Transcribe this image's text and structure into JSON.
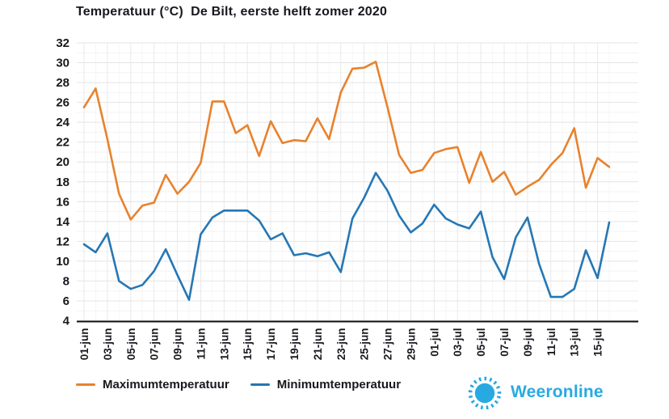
{
  "header": {
    "title": "Temperatuur (°C)  De Bilt, eerste helft zomer 2020"
  },
  "chart_data": {
    "type": "line",
    "title": "Temperatuur (°C)  De Bilt, eerste helft zomer 2020",
    "x_dates": [
      "01-jun",
      "02-jun",
      "03-jun",
      "04-jun",
      "05-jun",
      "06-jun",
      "07-jun",
      "08-jun",
      "09-jun",
      "10-jun",
      "11-jun",
      "12-jun",
      "13-jun",
      "14-jun",
      "15-jun",
      "16-jun",
      "17-jun",
      "18-jun",
      "19-jun",
      "20-jun",
      "21-jun",
      "22-jun",
      "23-jun",
      "24-jun",
      "25-jun",
      "26-jun",
      "27-jun",
      "28-jun",
      "29-jun",
      "30-jun",
      "01-jul",
      "02-jul",
      "03-jul",
      "04-jul",
      "05-jul",
      "06-jul",
      "07-jul",
      "08-jul",
      "09-jul",
      "10-jul",
      "11-jul",
      "12-jul",
      "13-jul",
      "14-jul",
      "15-jul",
      "16-jul"
    ],
    "x_tick_labels": [
      "01-jun",
      "03-jun",
      "05-jun",
      "07-jun",
      "09-jun",
      "11-jun",
      "13-jun",
      "15-jun",
      "17-jun",
      "19-jun",
      "21-jun",
      "23-jun",
      "25-jun",
      "27-jun",
      "29-jun",
      "01-jul",
      "03-jul",
      "05-jul",
      "07-jul",
      "09-jul",
      "11-jul",
      "13-jul",
      "15-jul"
    ],
    "series": [
      {
        "name": "Maximumtemperatuur",
        "color": "#e8822d",
        "values": [
          25.5,
          27.4,
          22.3,
          16.8,
          14.2,
          15.6,
          15.9,
          18.7,
          16.8,
          18.0,
          19.9,
          26.1,
          26.1,
          22.9,
          23.7,
          20.6,
          24.1,
          21.9,
          22.2,
          22.1,
          24.4,
          22.3,
          27.0,
          29.4,
          29.5,
          30.1,
          25.5,
          20.7,
          18.9,
          19.2,
          20.9,
          21.3,
          21.5,
          17.9,
          21.0,
          18.0,
          19.0,
          16.7,
          17.5,
          18.2,
          19.7,
          20.9,
          23.4,
          17.4,
          20.4,
          19.5
        ]
      },
      {
        "name": "Minimumtemperatuur",
        "color": "#2577b5",
        "values": [
          11.7,
          10.9,
          12.8,
          8.0,
          7.2,
          7.6,
          9.0,
          11.2,
          8.6,
          6.1,
          12.7,
          14.4,
          15.1,
          15.1,
          15.1,
          14.1,
          12.2,
          12.8,
          10.6,
          10.8,
          10.5,
          10.9,
          8.9,
          14.3,
          16.4,
          18.9,
          17.1,
          14.6,
          12.9,
          13.8,
          15.7,
          14.3,
          13.7,
          13.3,
          15.0,
          10.4,
          8.2,
          12.4,
          14.4,
          9.7,
          6.4,
          6.4,
          7.2,
          11.1,
          8.3,
          13.9
        ]
      }
    ],
    "ylabel": "",
    "xlabel": "",
    "ylim": [
      4,
      32
    ],
    "y_tick_step": 2,
    "y_tick_labels": [
      "4",
      "6",
      "8",
      "10",
      "12",
      "14",
      "16",
      "18",
      "20",
      "22",
      "24",
      "26",
      "28",
      "30",
      "32"
    ],
    "grid": true,
    "legend_position": "bottom-left"
  },
  "legend": {
    "items": [
      {
        "label": "Maximumtemperatuur",
        "color": "#e8822d"
      },
      {
        "label": "Minimumtemperatuur",
        "color": "#2577b5"
      }
    ]
  },
  "logo": {
    "text": "Weeronline",
    "color": "#29a9e1",
    "icon": "sun-icon"
  },
  "colors": {
    "text": "#18181f",
    "axis_line": "#111111",
    "grid_major": "#e4e4e6",
    "grid_minor": "#f3f3f4",
    "grid_vertical": "#e9e9eb",
    "grid_vertical_minor": "#f6f6f7",
    "background": "#ffffff"
  }
}
